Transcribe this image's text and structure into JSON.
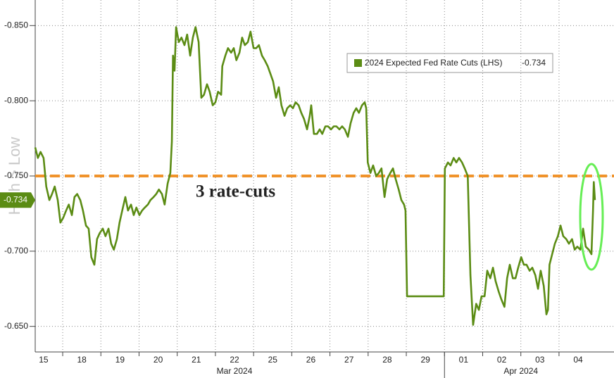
{
  "chart_data": {
    "type": "line",
    "y_axis_label": "High > Low",
    "ylim": [
      -0.633,
      -0.867
    ],
    "yticks": [
      {
        "value": -0.85,
        "label": "-0.850"
      },
      {
        "value": -0.8,
        "label": "-0.800"
      },
      {
        "value": -0.75,
        "label": "-0.750"
      },
      {
        "value": -0.7,
        "label": "-0.700"
      },
      {
        "value": -0.65,
        "label": "-0.650"
      }
    ],
    "xlim": [
      0.28,
      15.44
    ],
    "xticks": [
      {
        "value": 0.5,
        "label": "15"
      },
      {
        "value": 1.5,
        "label": "18"
      },
      {
        "value": 2.5,
        "label": "19"
      },
      {
        "value": 3.5,
        "label": "20"
      },
      {
        "value": 4.5,
        "label": "21"
      },
      {
        "value": 5.5,
        "label": "22"
      },
      {
        "value": 6.5,
        "label": "25"
      },
      {
        "value": 7.5,
        "label": "26"
      },
      {
        "value": 8.5,
        "label": "27"
      },
      {
        "value": 9.5,
        "label": "28"
      },
      {
        "value": 10.5,
        "label": "29"
      },
      {
        "value": 11.5,
        "label": "01"
      },
      {
        "value": 12.5,
        "label": "02"
      },
      {
        "value": 13.5,
        "label": "03"
      },
      {
        "value": 14.5,
        "label": "04"
      }
    ],
    "x_group_labels": [
      {
        "value": 5.5,
        "label": "Mar 2024"
      },
      {
        "value": 13,
        "label": "Apr 2024"
      }
    ],
    "x_separators": [
      11
    ],
    "grid": true,
    "legend_position": "upper right",
    "last_value": -0.734,
    "reference_line": {
      "value": -0.75,
      "label": "3 rate-cuts",
      "color": "#f0932b"
    },
    "series": [
      {
        "name": "2024 Expected Fed Rate Cuts (LHS)",
        "color": "#5b8c14",
        "x": [
          0.28,
          0.35,
          0.42,
          0.5,
          0.57,
          0.65,
          0.72,
          0.79,
          0.87,
          0.94,
          1.01,
          1.09,
          1.16,
          1.24,
          1.31,
          1.38,
          1.46,
          1.53,
          1.61,
          1.68,
          1.75,
          1.83,
          1.9,
          1.97,
          2.05,
          2.12,
          2.2,
          2.27,
          2.34,
          2.42,
          2.49,
          2.56,
          2.64,
          2.71,
          2.79,
          2.86,
          2.93,
          3.01,
          3.08,
          3.15,
          3.23,
          3.3,
          3.38,
          3.45,
          3.52,
          3.6,
          3.67,
          3.75,
          3.82,
          3.86,
          3.89,
          3.93,
          3.97,
          4.04,
          4.11,
          4.19,
          4.26,
          4.34,
          4.41,
          4.48,
          4.56,
          4.63,
          4.7,
          4.78,
          4.85,
          4.93,
          5.0,
          5.07,
          5.15,
          5.18,
          5.26,
          5.33,
          5.41,
          5.48,
          5.55,
          5.63,
          5.7,
          5.77,
          5.85,
          5.92,
          6.0,
          6.07,
          6.14,
          6.22,
          6.29,
          6.37,
          6.44,
          6.51,
          6.59,
          6.66,
          6.73,
          6.81,
          6.88,
          6.96,
          7.03,
          7.1,
          7.18,
          7.25,
          7.32,
          7.4,
          7.47,
          7.51,
          7.58,
          7.66,
          7.73,
          7.8,
          7.88,
          7.95,
          8.03,
          8.1,
          8.17,
          8.25,
          8.32,
          8.39,
          8.47,
          8.54,
          8.62,
          8.69,
          8.76,
          8.84,
          8.91,
          8.95,
          8.99,
          9.06,
          9.13,
          9.21,
          9.28,
          9.35,
          9.43,
          9.5,
          9.58,
          9.65,
          9.72,
          9.8,
          9.87,
          9.94,
          9.98,
          10.02,
          10.98,
          11.01,
          11.09,
          11.16,
          11.24,
          11.31,
          11.38,
          11.46,
          11.53,
          11.61,
          11.68,
          11.75,
          11.83,
          11.9,
          11.97,
          12.05,
          12.12,
          12.2,
          12.27,
          12.34,
          12.42,
          12.49,
          12.57,
          12.64,
          12.71,
          12.79,
          12.86,
          12.93,
          13.01,
          13.08,
          13.15,
          13.23,
          13.3,
          13.38,
          13.45,
          13.52,
          13.6,
          13.67,
          13.71,
          13.75,
          13.82,
          13.89,
          13.97,
          14.04,
          14.11,
          14.19,
          14.26,
          14.34,
          14.41,
          14.48,
          14.56,
          14.63,
          14.7,
          14.78,
          14.85,
          14.89,
          14.91,
          14.94
        ],
        "values": [
          -0.769,
          -0.762,
          -0.766,
          -0.762,
          -0.743,
          -0.734,
          -0.738,
          -0.743,
          -0.734,
          -0.719,
          -0.722,
          -0.727,
          -0.731,
          -0.724,
          -0.736,
          -0.738,
          -0.734,
          -0.727,
          -0.717,
          -0.715,
          -0.696,
          -0.691,
          -0.708,
          -0.712,
          -0.715,
          -0.71,
          -0.715,
          -0.705,
          -0.701,
          -0.708,
          -0.719,
          -0.727,
          -0.736,
          -0.727,
          -0.731,
          -0.724,
          -0.729,
          -0.724,
          -0.727,
          -0.729,
          -0.731,
          -0.734,
          -0.736,
          -0.738,
          -0.741,
          -0.738,
          -0.731,
          -0.745,
          -0.752,
          -0.773,
          -0.83,
          -0.82,
          -0.849,
          -0.839,
          -0.842,
          -0.837,
          -0.844,
          -0.83,
          -0.842,
          -0.849,
          -0.839,
          -0.802,
          -0.804,
          -0.811,
          -0.806,
          -0.797,
          -0.799,
          -0.806,
          -0.804,
          -0.823,
          -0.83,
          -0.835,
          -0.832,
          -0.835,
          -0.827,
          -0.832,
          -0.842,
          -0.837,
          -0.839,
          -0.846,
          -0.835,
          -0.835,
          -0.837,
          -0.83,
          -0.827,
          -0.823,
          -0.818,
          -0.813,
          -0.802,
          -0.809,
          -0.797,
          -0.79,
          -0.795,
          -0.797,
          -0.795,
          -0.799,
          -0.797,
          -0.792,
          -0.788,
          -0.781,
          -0.79,
          -0.797,
          -0.778,
          -0.778,
          -0.781,
          -0.778,
          -0.783,
          -0.783,
          -0.781,
          -0.783,
          -0.783,
          -0.781,
          -0.783,
          -0.781,
          -0.776,
          -0.785,
          -0.792,
          -0.795,
          -0.792,
          -0.797,
          -0.799,
          -0.795,
          -0.759,
          -0.752,
          -0.757,
          -0.75,
          -0.752,
          -0.755,
          -0.736,
          -0.748,
          -0.752,
          -0.755,
          -0.748,
          -0.741,
          -0.734,
          -0.731,
          -0.727,
          -0.67,
          -0.67,
          -0.755,
          -0.759,
          -0.757,
          -0.762,
          -0.759,
          -0.762,
          -0.759,
          -0.755,
          -0.75,
          -0.684,
          -0.651,
          -0.665,
          -0.661,
          -0.67,
          -0.67,
          -0.687,
          -0.682,
          -0.689,
          -0.68,
          -0.673,
          -0.668,
          -0.663,
          -0.682,
          -0.691,
          -0.682,
          -0.682,
          -0.689,
          -0.696,
          -0.691,
          -0.691,
          -0.687,
          -0.689,
          -0.684,
          -0.675,
          -0.687,
          -0.677,
          -0.658,
          -0.661,
          -0.691,
          -0.698,
          -0.705,
          -0.71,
          -0.717,
          -0.71,
          -0.708,
          -0.705,
          -0.708,
          -0.701,
          -0.703,
          -0.701,
          -0.715,
          -0.703,
          -0.701,
          -0.698,
          -0.727,
          -0.746,
          -0.734
        ]
      }
    ]
  }
}
